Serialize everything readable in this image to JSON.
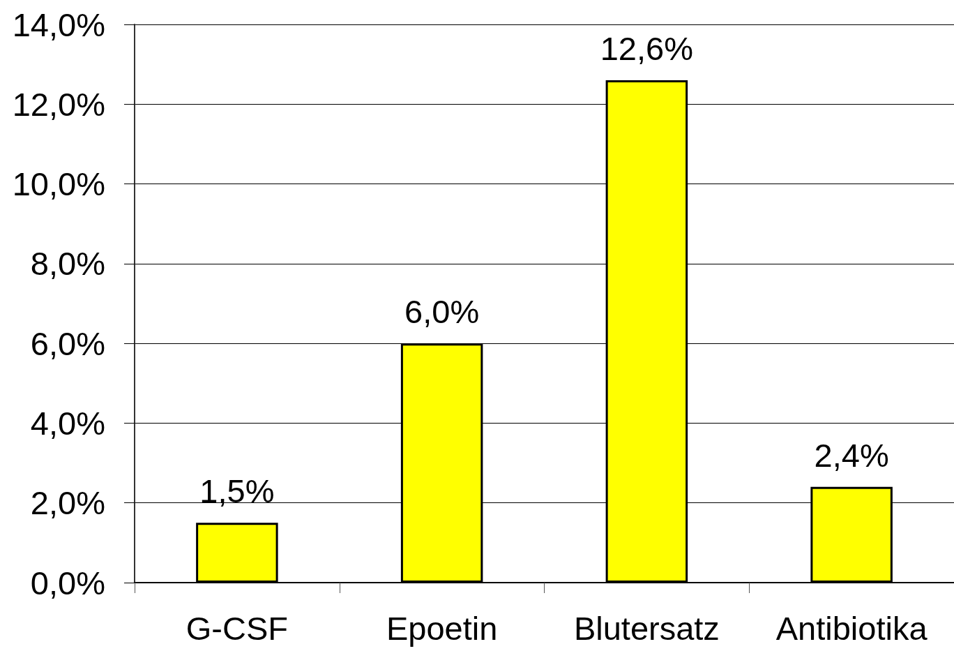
{
  "chart_data": {
    "type": "bar",
    "categories": [
      "G-CSF",
      "Epoetin",
      "Blutersatz",
      "Antibiotika"
    ],
    "values": [
      1.5,
      6.0,
      12.6,
      2.4
    ],
    "value_labels": [
      "1,5%",
      "6,0%",
      "12,6%",
      "2,4%"
    ],
    "color": "#ffff00",
    "ylim": [
      0,
      14
    ],
    "yticks": [
      {
        "value": 0,
        "label": "0,0%"
      },
      {
        "value": 2,
        "label": "2,0%"
      },
      {
        "value": 4,
        "label": "4,0%"
      },
      {
        "value": 6,
        "label": "6,0%"
      },
      {
        "value": 8,
        "label": "8,0%"
      },
      {
        "value": 10,
        "label": "10,0%"
      },
      {
        "value": 12,
        "label": "12,0%"
      },
      {
        "value": 14,
        "label": "14,0%"
      }
    ],
    "grid": "y"
  }
}
